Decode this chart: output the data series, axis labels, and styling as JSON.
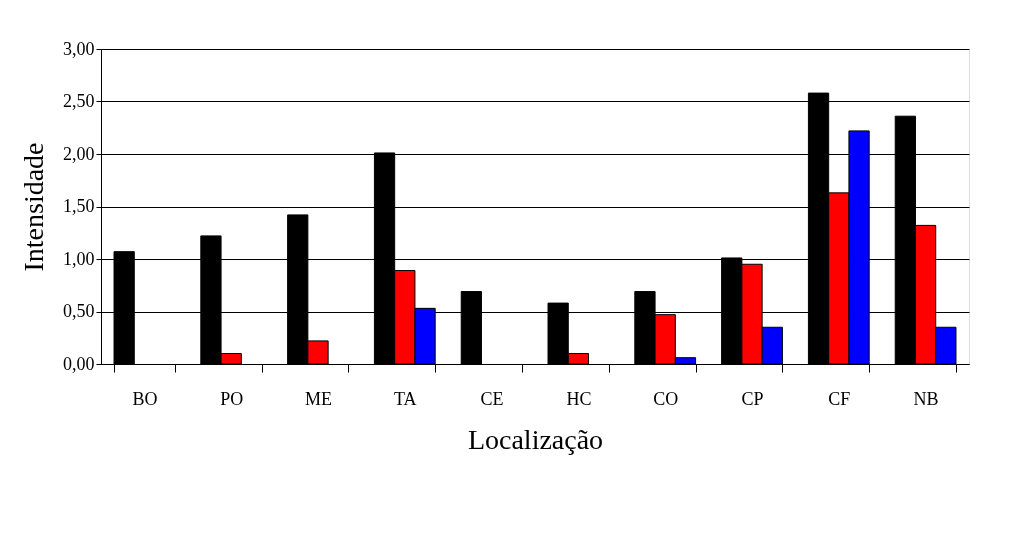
{
  "chart_data": {
    "type": "bar",
    "xlabel": "Localização",
    "ylabel": "Intensidade",
    "categories": [
      "BO",
      "PO",
      "ME",
      "TA",
      "CE",
      "HC",
      "CO",
      "CP",
      "CF",
      "NB"
    ],
    "series": [
      {
        "color": "#000000",
        "values": [
          1.07,
          1.22,
          1.42,
          2.01,
          0.69,
          0.58,
          0.69,
          1.01,
          2.58,
          2.36
        ]
      },
      {
        "color": "#ff0000",
        "values": [
          null,
          0.1,
          0.22,
          0.89,
          null,
          0.1,
          0.47,
          0.95,
          1.63,
          1.32
        ]
      },
      {
        "color": "#0000ff",
        "values": [
          null,
          null,
          null,
          0.53,
          null,
          null,
          0.06,
          0.35,
          2.22,
          0.35
        ]
      }
    ],
    "ylim": [
      0,
      3
    ],
    "yticks": [
      {
        "value": 0,
        "label": "0,00"
      },
      {
        "value": 0.5,
        "label": "0,50"
      },
      {
        "value": 1,
        "label": "1,00"
      },
      {
        "value": 1.5,
        "label": "1,50"
      },
      {
        "value": 2,
        "label": "2,00"
      },
      {
        "value": 2.5,
        "label": "2,50"
      },
      {
        "value": 3,
        "label": "3,00"
      }
    ],
    "grid": "y",
    "legend": false
  }
}
